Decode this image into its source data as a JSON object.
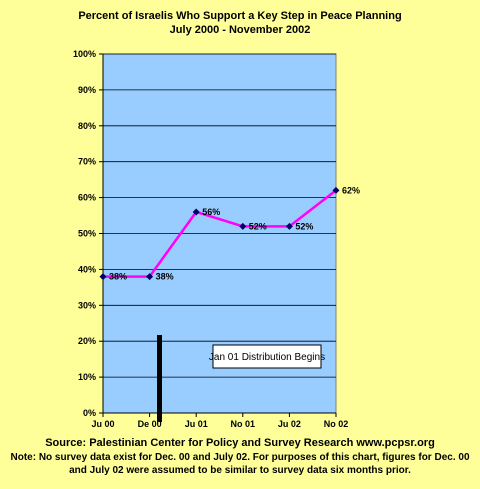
{
  "chart_data": {
    "type": "line",
    "title": "Percent of Israelis Who Support a Key Step in Peace Planning",
    "subtitle": "July 2000 - November 2002",
    "categories": [
      "Ju 00",
      "De 00",
      "Ju 01",
      "No 01",
      "Ju 02",
      "No 02"
    ],
    "series": [
      {
        "values": [
          38,
          38,
          56,
          52,
          52,
          62
        ],
        "data_labels": [
          "38%",
          "38%",
          "56%",
          "52%",
          "52%",
          "62%"
        ],
        "color": "#FF00FF"
      }
    ],
    "ylim": [
      0,
      100
    ],
    "yticks": [
      "0%",
      "10%",
      "20%",
      "30%",
      "40%",
      "50%",
      "60%",
      "70%",
      "80%",
      "90%",
      "100%"
    ],
    "grid": true,
    "plot_background": "#99CCFF",
    "page_background": "#FFFF99",
    "event_marker": {
      "label": "Jan 01 Distribution Begins",
      "color": "#000000"
    }
  },
  "source": "Source: Palestinian Center for Policy and Survey Research www.pcpsr.org",
  "note_line1": "Note: No survey data exist for Dec. 00 and July 02. For purposes of this chart, figures for Dec. 00",
  "note_line2": "and July 02 were assumed to be similar to survey data six months prior."
}
